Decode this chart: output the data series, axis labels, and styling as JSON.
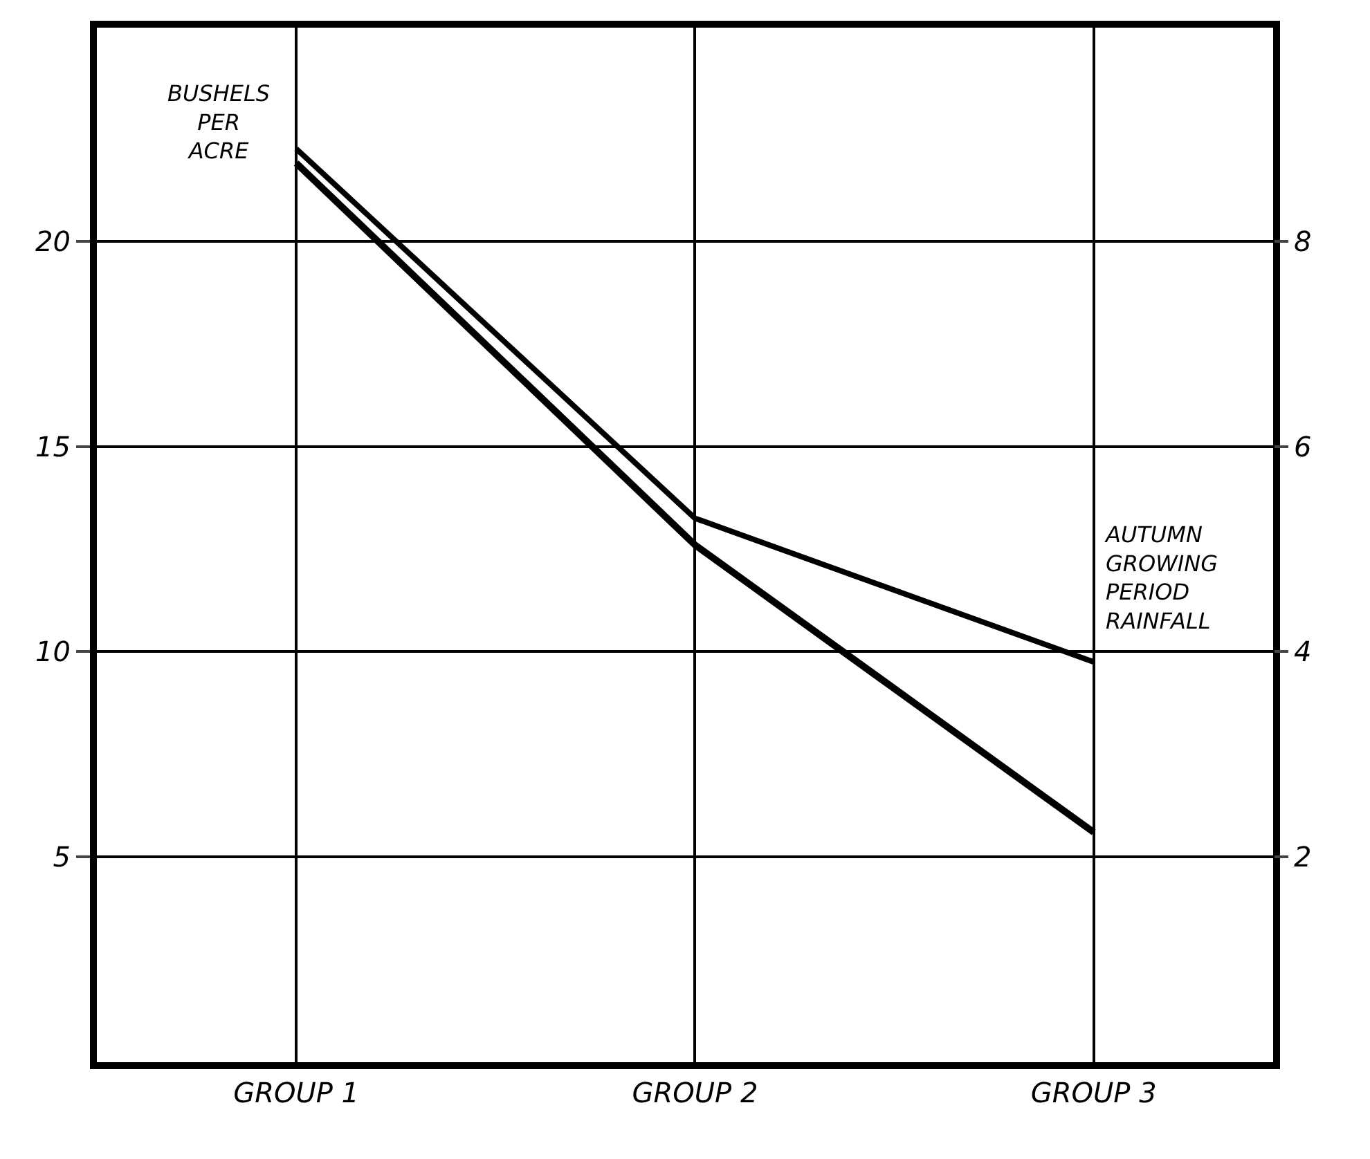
{
  "chart_data": {
    "type": "line",
    "ylabel": "BUSHELS PER ACRE",
    "y2label": "AUTUMN GROWING PERIOD RAINFALL",
    "categories": [
      "GROUP 1",
      "GROUP 2",
      "GROUP 3"
    ],
    "series": [
      {
        "color": "#000000",
        "values": [
          21.9,
          12.6,
          5.6
        ]
      },
      {
        "color": "#000000",
        "axis": "y2",
        "values": [
          8.9,
          5.3,
          3.9
        ]
      }
    ],
    "ylim": [
      0,
      25.2
    ],
    "yticks": [
      5,
      10,
      15,
      20
    ],
    "y2lim": [
      0,
      10.08
    ],
    "y2ticks": [
      2,
      4,
      6,
      8
    ],
    "grid": true,
    "marker": "none",
    "line_style": "solid"
  }
}
